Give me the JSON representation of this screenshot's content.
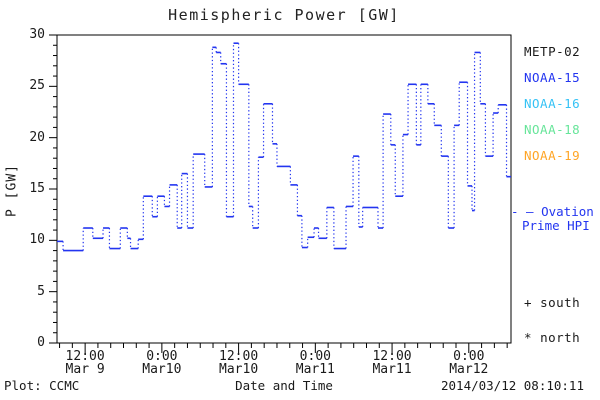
{
  "title": "Hemispheric Power [GW]",
  "footer": {
    "plot_credit": "Plot: CCMC",
    "xaxis_title": "Date and Time",
    "timestamp": "2014/03/12 08:10:11"
  },
  "y_axis": {
    "title": "P [GW]",
    "min": 0,
    "max": 30,
    "major_step": 5,
    "minor_step": 1,
    "major_labels": [
      "0",
      "5",
      "10",
      "15",
      "20",
      "25",
      "30"
    ]
  },
  "x_axis": {
    "hours_total": 71.0,
    "minor_step_hours": 2,
    "minor_offset_hours": 0.4,
    "major_ticks": [
      {
        "hours": 4.4,
        "time": "12:00",
        "date": "Mar 9"
      },
      {
        "hours": 16.4,
        "time": "0:00",
        "date": "Mar10"
      },
      {
        "hours": 28.4,
        "time": "12:00",
        "date": "Mar10"
      },
      {
        "hours": 40.4,
        "time": "0:00",
        "date": "Mar11"
      },
      {
        "hours": 52.4,
        "time": "12:00",
        "date": "Mar11"
      },
      {
        "hours": 64.4,
        "time": "0:00",
        "date": "Mar12"
      }
    ]
  },
  "legend": {
    "satellites": [
      {
        "label": "METP-02",
        "color": "#1a1a1a"
      },
      {
        "label": "NOAA-15",
        "color": "#2335f0"
      },
      {
        "label": "NOAA-16",
        "color": "#35c2f5"
      },
      {
        "label": "NOAA-18",
        "color": "#67e59a"
      },
      {
        "label": "NOAA-19",
        "color": "#ffa526"
      }
    ],
    "model": {
      "line1": "- — Ovation",
      "line2": "Prime HPI",
      "color": "#2335f0"
    },
    "hemisphere_markers": [
      {
        "symbol": "+",
        "label": "south"
      },
      {
        "symbol": "*",
        "label": "north"
      }
    ]
  },
  "chart_data": {
    "type": "line",
    "subtype": "step",
    "title": "Hemispheric Power [GW]",
    "xlabel": "Date and Time",
    "ylabel": "P [GW]",
    "ylim": [
      0,
      30
    ],
    "series_name": "Ovation Prime HPI",
    "color": "#2335f0",
    "x_unit": "hours from plot start (~07:30 UT 2014 Mar 9)",
    "t_end": 71.0,
    "steps": [
      [
        0.0,
        9.9
      ],
      [
        0.95,
        9.0
      ],
      [
        4.1,
        11.2
      ],
      [
        5.6,
        10.2
      ],
      [
        7.2,
        11.2
      ],
      [
        8.2,
        9.2
      ],
      [
        9.9,
        11.2
      ],
      [
        11.0,
        10.2
      ],
      [
        11.5,
        9.2
      ],
      [
        12.7,
        10.1
      ],
      [
        13.5,
        14.3
      ],
      [
        14.9,
        12.3
      ],
      [
        15.7,
        14.3
      ],
      [
        16.8,
        13.3
      ],
      [
        17.6,
        15.4
      ],
      [
        18.8,
        11.2
      ],
      [
        19.5,
        16.5
      ],
      [
        20.4,
        11.2
      ],
      [
        21.3,
        18.4
      ],
      [
        23.1,
        15.2
      ],
      [
        24.3,
        28.8
      ],
      [
        24.9,
        28.3
      ],
      [
        25.6,
        27.2
      ],
      [
        26.5,
        12.3
      ],
      [
        27.6,
        29.2
      ],
      [
        28.4,
        25.2
      ],
      [
        30.0,
        13.3
      ],
      [
        30.6,
        11.2
      ],
      [
        31.5,
        18.1
      ],
      [
        32.3,
        23.3
      ],
      [
        33.7,
        19.4
      ],
      [
        34.4,
        17.2
      ],
      [
        36.5,
        15.4
      ],
      [
        37.6,
        12.4
      ],
      [
        38.3,
        9.3
      ],
      [
        39.2,
        10.3
      ],
      [
        40.2,
        11.2
      ],
      [
        40.9,
        10.2
      ],
      [
        42.2,
        13.2
      ],
      [
        43.3,
        9.2
      ],
      [
        45.2,
        13.3
      ],
      [
        46.3,
        18.2
      ],
      [
        47.2,
        11.3
      ],
      [
        47.8,
        13.2
      ],
      [
        50.2,
        11.2
      ],
      [
        51.0,
        22.3
      ],
      [
        52.2,
        19.3
      ],
      [
        52.9,
        14.3
      ],
      [
        54.1,
        20.3
      ],
      [
        54.9,
        25.2
      ],
      [
        56.2,
        19.3
      ],
      [
        56.9,
        25.2
      ],
      [
        58.0,
        23.3
      ],
      [
        59.0,
        21.2
      ],
      [
        60.1,
        18.2
      ],
      [
        61.2,
        11.2
      ],
      [
        62.1,
        21.2
      ],
      [
        62.9,
        25.4
      ],
      [
        64.2,
        15.3
      ],
      [
        64.9,
        12.9
      ],
      [
        65.3,
        28.3
      ],
      [
        66.2,
        23.3
      ],
      [
        67.0,
        18.2
      ],
      [
        68.2,
        22.4
      ],
      [
        69.0,
        23.2
      ],
      [
        70.3,
        16.2
      ]
    ]
  }
}
